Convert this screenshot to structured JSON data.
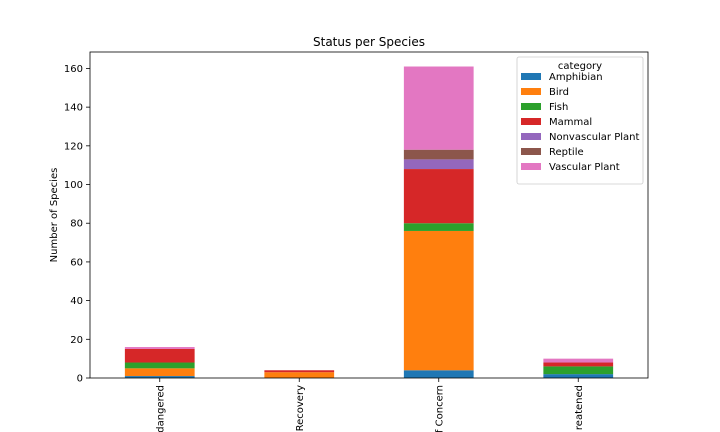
{
  "chart_data": {
    "type": "bar",
    "stacked": true,
    "title": "Status per Species",
    "xlabel": "",
    "ylabel": "Number of Species",
    "ylim": [
      0,
      168.5
    ],
    "yticks": [
      0,
      20,
      40,
      60,
      80,
      100,
      120,
      140,
      160
    ],
    "categories": [
      "Endangered",
      "In Recovery",
      "Species of Concern",
      "Threatened"
    ],
    "category_tick_labels": [
      "dangered",
      "Recovery",
      "f Concern",
      "reatened"
    ],
    "legend": {
      "title": "category",
      "placement": "top-right"
    },
    "grid": false,
    "series": [
      {
        "name": "Amphibian",
        "color": "#1f77b4",
        "values": [
          1,
          0,
          4,
          2
        ]
      },
      {
        "name": "Bird",
        "color": "#ff7f0e",
        "values": [
          4,
          3,
          72,
          0
        ]
      },
      {
        "name": "Fish",
        "color": "#2ca02c",
        "values": [
          3,
          0,
          4,
          4
        ]
      },
      {
        "name": "Mammal",
        "color": "#d62728",
        "values": [
          7,
          1,
          28,
          2
        ]
      },
      {
        "name": "Nonvascular Plant",
        "color": "#9467bd",
        "values": [
          0,
          0,
          5,
          0
        ]
      },
      {
        "name": "Reptile",
        "color": "#8c564b",
        "values": [
          0,
          0,
          5,
          0
        ]
      },
      {
        "name": "Vascular Plant",
        "color": "#e377c2",
        "values": [
          1,
          0,
          43,
          2
        ]
      }
    ]
  }
}
